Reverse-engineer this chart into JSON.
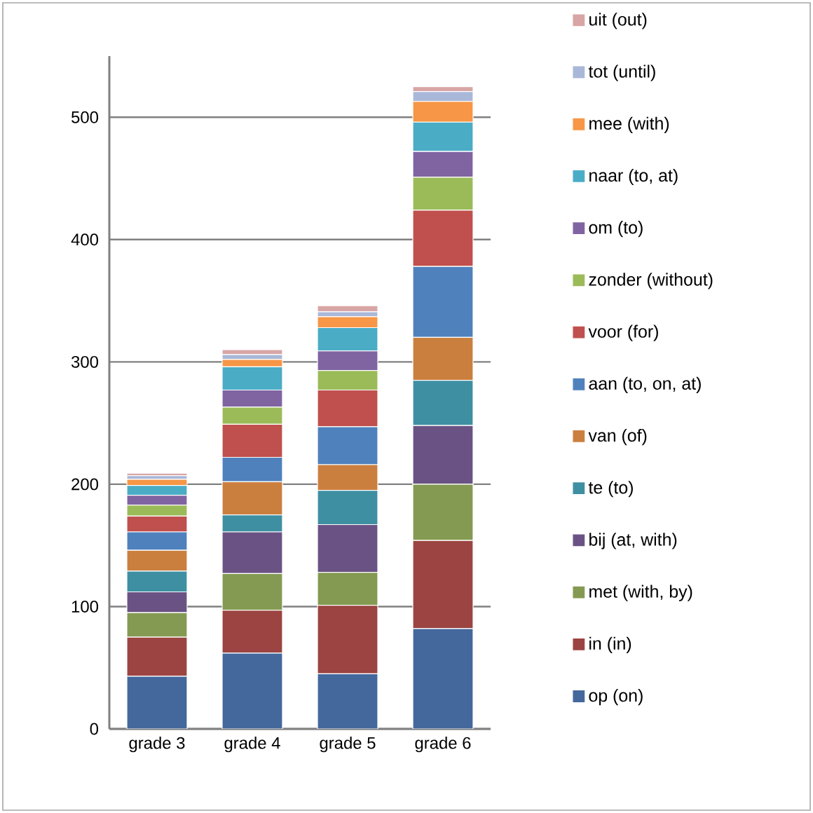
{
  "chart_data": {
    "type": "bar",
    "stacked": true,
    "categories": [
      "grade 3",
      "grade 4",
      "grade 5",
      "grade 6"
    ],
    "series": [
      {
        "name": "op (on)",
        "color": "#44689c",
        "values": [
          43,
          62,
          45,
          82
        ]
      },
      {
        "name": "in (in)",
        "color": "#9b4441",
        "values": [
          32,
          35,
          56,
          72
        ]
      },
      {
        "name": "met (with, by)",
        "color": "#849a52",
        "values": [
          20,
          30,
          27,
          46
        ]
      },
      {
        "name": "bij (at, with)",
        "color": "#6a5384",
        "values": [
          17,
          34,
          39,
          48
        ]
      },
      {
        "name": "te (to)",
        "color": "#3f8fa3",
        "values": [
          17,
          14,
          28,
          37
        ]
      },
      {
        "name": "van (of)",
        "color": "#cb7f3f",
        "values": [
          17,
          27,
          21,
          35
        ]
      },
      {
        "name": "aan (to, on, at)",
        "color": "#4f81bd",
        "values": [
          15,
          20,
          31,
          58
        ]
      },
      {
        "name": "voor (for)",
        "color": "#c0504d",
        "values": [
          13,
          27,
          30,
          46
        ]
      },
      {
        "name": "zonder (without)",
        "color": "#9bbb59",
        "values": [
          9,
          14,
          16,
          27
        ]
      },
      {
        "name": "om (to)",
        "color": "#8064a2",
        "values": [
          8,
          14,
          16,
          21
        ]
      },
      {
        "name": "naar (to, at)",
        "color": "#4bacc6",
        "values": [
          8,
          19,
          19,
          24
        ]
      },
      {
        "name": "mee (with)",
        "color": "#f79646",
        "values": [
          5,
          6,
          9,
          17
        ]
      },
      {
        "name": "tot (until)",
        "color": "#a9b8d8",
        "values": [
          3,
          4,
          4,
          8
        ]
      },
      {
        "name": "uit (out)",
        "color": "#d8a5a5",
        "values": [
          2,
          4,
          5,
          4
        ]
      }
    ],
    "ylim": [
      0,
      550
    ],
    "yticks": [
      0,
      100,
      200,
      300,
      400,
      500
    ],
    "grid": "y",
    "legend": "right"
  }
}
